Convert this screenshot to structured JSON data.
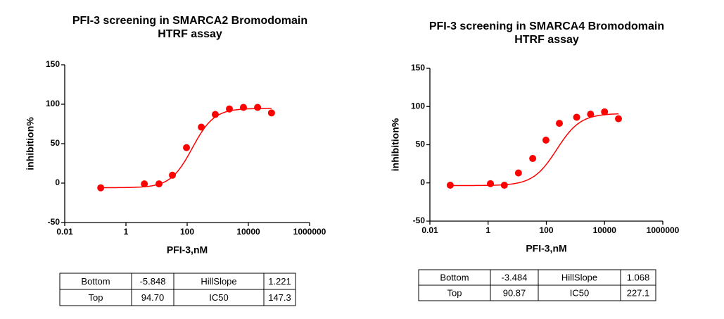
{
  "chart_data": [
    {
      "type": "scatter",
      "title": "PFI-3 screening in SMARCA2 Bromodomain",
      "subtitle": "HTRF assay",
      "x_label": "PFI-3,nM",
      "y_label": "inhibition%",
      "color": "#ff0000",
      "xscale": "log",
      "x": [
        0.15,
        4,
        12,
        33,
        95,
        290,
        830,
        2400,
        6900,
        20000,
        57000
      ],
      "values": [
        -6,
        -1,
        -1,
        10,
        45,
        71,
        87,
        94,
        96,
        96,
        89
      ],
      "xlim": [
        0.01,
        1000000
      ],
      "xticks": [
        0.01,
        1,
        100,
        10000,
        1000000
      ],
      "ylim": [
        -50,
        150
      ],
      "yticks": [
        -50,
        0,
        50,
        100,
        150
      ],
      "table": {
        "rows": [
          [
            "Bottom",
            "-5.848",
            "HillSlope",
            "1.221"
          ],
          [
            "Top",
            "94.70",
            "IC50",
            "147.3"
          ]
        ]
      }
    },
    {
      "type": "scatter",
      "title": "PFI-3 screening in SMARCA4 Bromodomain",
      "subtitle": "HTRF assay",
      "x_label": "PFI-3,nM",
      "y_label": "inhibition%",
      "color": "#ff0000",
      "xscale": "log",
      "x": [
        0.05,
        1.2,
        3.6,
        11,
        34,
        97,
        280,
        1100,
        3300,
        10000,
        30000
      ],
      "values": [
        -3,
        -1,
        -3,
        13,
        32,
        56,
        78,
        86,
        90,
        93,
        84
      ],
      "xlim": [
        0.01,
        1000000
      ],
      "xticks": [
        0.01,
        1,
        100,
        10000,
        1000000
      ],
      "ylim": [
        -50,
        150
      ],
      "yticks": [
        -50,
        0,
        50,
        100,
        150
      ],
      "table": {
        "rows": [
          [
            "Bottom",
            "-3.484",
            "HillSlope",
            "1.068"
          ],
          [
            "Top",
            "90.87",
            "IC50",
            "227.1"
          ]
        ]
      }
    }
  ]
}
